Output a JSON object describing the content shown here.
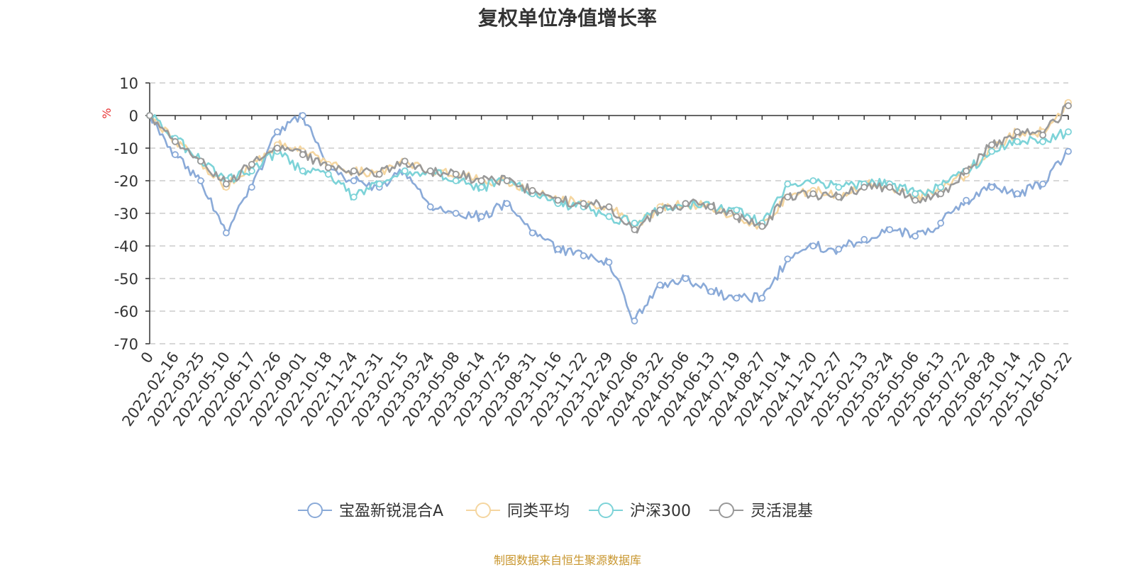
{
  "chart_data": {
    "type": "line",
    "title": "复权单位净值增长率",
    "ylabel": "%",
    "ylim": [
      -70,
      10
    ],
    "yticks": [
      10,
      0,
      -10,
      -20,
      -30,
      -40,
      -50,
      -60,
      -70
    ],
    "grid": true,
    "legend_position": "bottom-center",
    "x": [
      "0",
      "2022-02-16",
      "2022-03-25",
      "2022-05-10",
      "2022-06-17",
      "2022-07-26",
      "2022-09-01",
      "2022-10-18",
      "2022-11-24",
      "2022-12-31",
      "2023-02-15",
      "2023-03-24",
      "2023-05-08",
      "2023-06-14",
      "2023-07-25",
      "2023-08-31",
      "2023-10-16",
      "2023-11-22",
      "2023-12-29",
      "2024-02-06",
      "2024-03-22",
      "2024-05-06",
      "2024-06-13",
      "2024-07-19",
      "2024-08-27",
      "2024-10-14",
      "2024-11-20",
      "2024-12-27",
      "2025-02-13",
      "2025-03-24",
      "2025-05-06",
      "2025-06-13",
      "2025-07-22",
      "2025-08-28",
      "2025-10-14",
      "2025-11-20",
      "2026-01-22"
    ],
    "series": [
      {
        "name": "宝盈新锐混合A",
        "color": "#8aaad8",
        "values": [
          0,
          -12,
          -20,
          -36,
          -22,
          -5,
          0,
          -16,
          -20,
          -22,
          -17,
          -28,
          -30,
          -31,
          -27,
          -36,
          -41,
          -43,
          -45,
          -63,
          -52,
          -50,
          -54,
          -56,
          -56,
          -44,
          -40,
          -41,
          -38,
          -35,
          -37,
          -33,
          -26,
          -22,
          -24,
          -21,
          -11
        ]
      },
      {
        "name": "同类平均",
        "color": "#f5d6a0",
        "values": [
          0,
          -8,
          -14,
          -22,
          -15,
          -9,
          -11,
          -15,
          -17,
          -18,
          -14,
          -17,
          -18,
          -20,
          -20,
          -23,
          -26,
          -27,
          -28,
          -34,
          -28,
          -27,
          -28,
          -31,
          -34,
          -25,
          -23,
          -25,
          -21,
          -22,
          -25,
          -23,
          -18,
          -10,
          -5,
          -5,
          4
        ]
      },
      {
        "name": "沪深300",
        "color": "#7dd3d8",
        "values": [
          0,
          -7,
          -14,
          -20,
          -17,
          -11,
          -17,
          -18,
          -25,
          -21,
          -17,
          -17,
          -20,
          -22,
          -20,
          -24,
          -27,
          -28,
          -31,
          -33,
          -29,
          -27,
          -28,
          -29,
          -33,
          -21,
          -20,
          -22,
          -21,
          -21,
          -24,
          -22,
          -17,
          -11,
          -8,
          -8,
          -5
        ]
      },
      {
        "name": "灵活混基",
        "color": "#999999",
        "values": [
          0,
          -8,
          -14,
          -21,
          -15,
          -10,
          -12,
          -16,
          -17,
          -18,
          -14,
          -17,
          -18,
          -20,
          -20,
          -23,
          -26,
          -27,
          -28,
          -35,
          -29,
          -27,
          -28,
          -31,
          -34,
          -25,
          -24,
          -25,
          -22,
          -22,
          -26,
          -24,
          -17,
          -9,
          -5,
          -6,
          3
        ]
      }
    ]
  },
  "source": "制图数据来自恒生聚源数据库"
}
